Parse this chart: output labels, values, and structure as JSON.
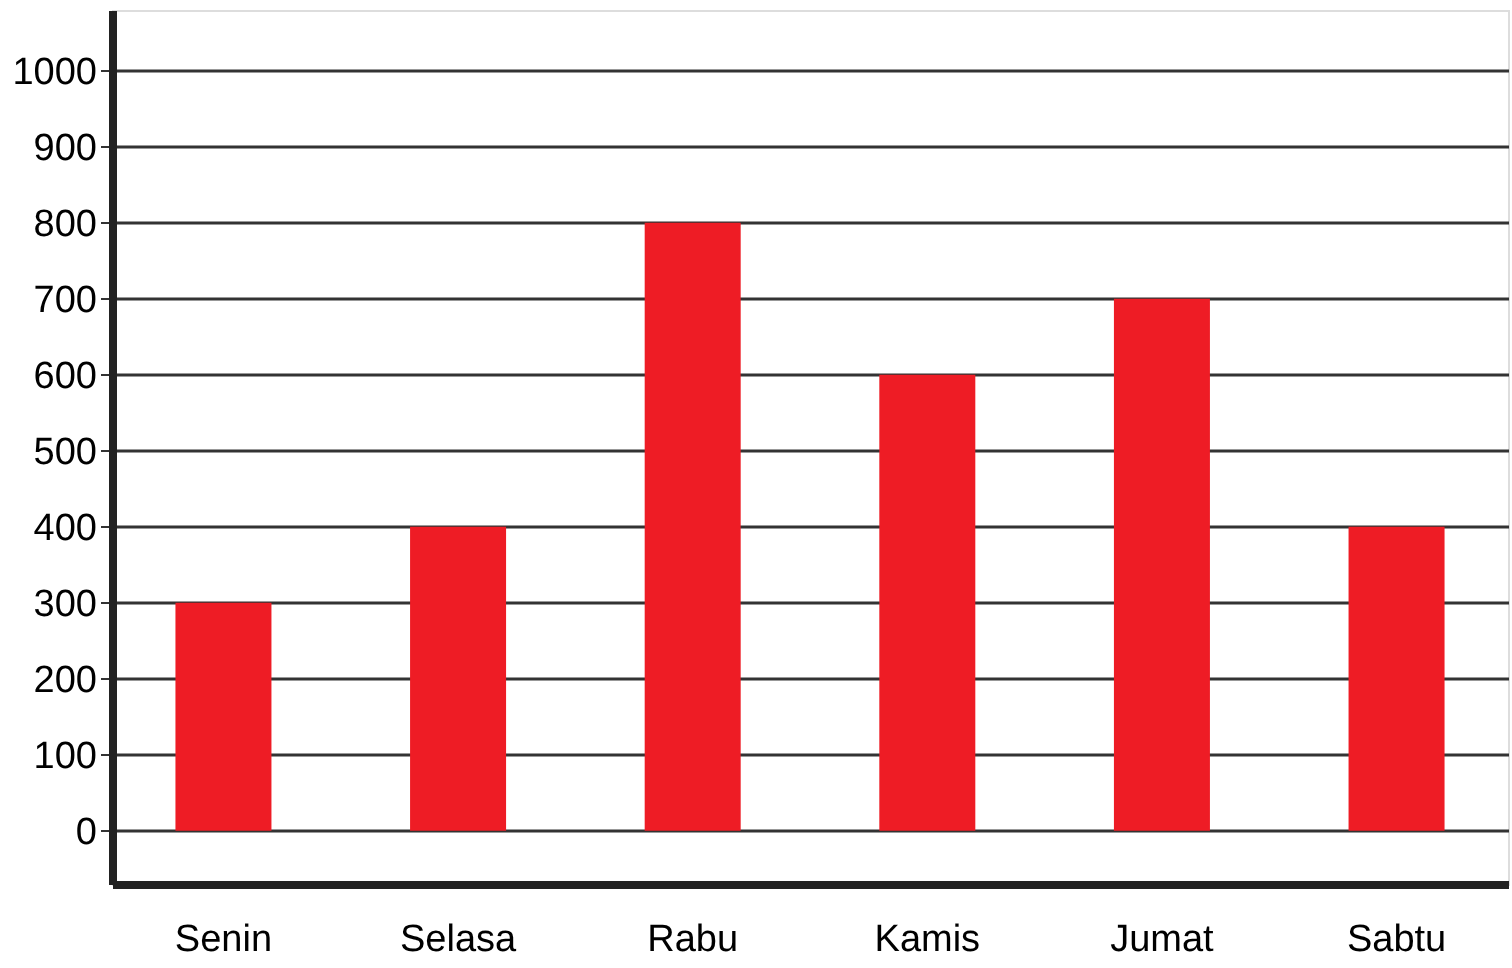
{
  "chart_data": {
    "type": "bar",
    "categories": [
      "Senin",
      "Selasa",
      "Rabu",
      "Kamis",
      "Jumat",
      "Sabtu"
    ],
    "values": [
      300,
      400,
      800,
      600,
      700,
      400
    ],
    "color": "#ee1c25",
    "ylim": [
      -70,
      1080
    ],
    "yticks": [
      0,
      100,
      200,
      300,
      400,
      500,
      600,
      700,
      800,
      900,
      1000
    ],
    "grid": "y"
  }
}
